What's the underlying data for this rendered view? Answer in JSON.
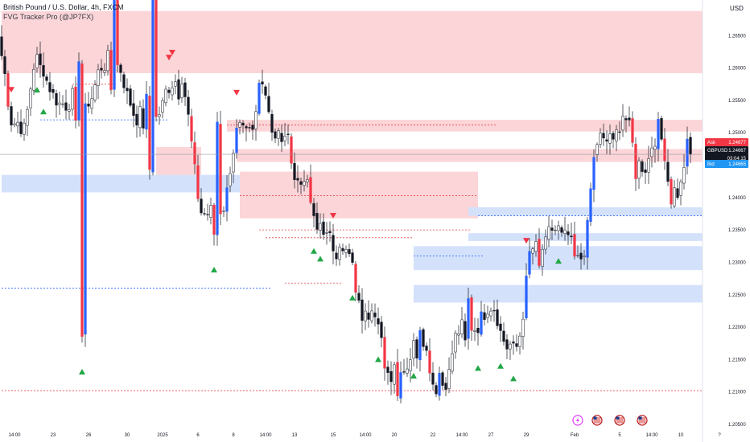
{
  "header": {
    "title": "British Pound / U.S. Dollar, 4h, FXCM",
    "indicator": "FVG Tracker Pro (@JP7FX)"
  },
  "currency": "USD",
  "colors": {
    "bull": "#2962ff",
    "bear": "#f23645",
    "candle_up": "#ffffff",
    "candle_down": "#131722",
    "zone_bear": "#fbd5d8",
    "zone_bull": "#d3e1fb",
    "line_bear": "#e8474c",
    "line_bull": "#2962ff",
    "ask": "#f23645",
    "bid": "#2196f3",
    "symbol": "#131722"
  },
  "price_tags": {
    "ask": {
      "label": "Ask",
      "value": "1.24677"
    },
    "last": {
      "label": "GBPUSD",
      "value": "1.24667",
      "countdown": "03:04:15"
    },
    "bid": {
      "label": "Bid",
      "value": "1.24665"
    }
  },
  "chart_data": {
    "type": "candlestick",
    "title": "British Pound / U.S. Dollar, 4h, FXCM",
    "ylim": [
      1.2045,
      1.2705
    ],
    "y_ticks": [
      {
        "v": 1.265,
        "label": "1.26500"
      },
      {
        "v": 1.26,
        "label": "1.26000"
      },
      {
        "v": 1.255,
        "label": "1.25500"
      },
      {
        "v": 1.25,
        "label": "1.25000"
      },
      {
        "v": 1.245,
        "label": "1.24500"
      },
      {
        "v": 1.24,
        "label": "1.24000"
      },
      {
        "v": 1.235,
        "label": "1.23500"
      },
      {
        "v": 1.23,
        "label": "1.23000"
      },
      {
        "v": 1.225,
        "label": "1.22500"
      },
      {
        "v": 1.22,
        "label": "1.22000"
      },
      {
        "v": 1.215,
        "label": "1.21500"
      },
      {
        "v": 1.21,
        "label": "1.21000"
      },
      {
        "v": 1.205,
        "label": "1.20500"
      }
    ],
    "x_ticks": [
      {
        "i": 4,
        "label": "14:00"
      },
      {
        "i": 16,
        "label": "23"
      },
      {
        "i": 27,
        "label": "26"
      },
      {
        "i": 39,
        "label": "30"
      },
      {
        "i": 50,
        "label": "2025"
      },
      {
        "i": 61,
        "label": "6"
      },
      {
        "i": 72,
        "label": "8"
      },
      {
        "i": 82,
        "label": "14:00"
      },
      {
        "i": 91,
        "label": "13"
      },
      {
        "i": 103,
        "label": "15"
      },
      {
        "i": 113,
        "label": "14:00"
      },
      {
        "i": 122,
        "label": "20"
      },
      {
        "i": 134,
        "label": "22"
      },
      {
        "i": 143,
        "label": "14:00"
      },
      {
        "i": 152,
        "label": "27"
      },
      {
        "i": 163,
        "label": "29"
      },
      {
        "i": 178,
        "label": "Feb"
      },
      {
        "i": 192,
        "label": "5"
      },
      {
        "i": 202,
        "label": "14:00"
      },
      {
        "i": 211,
        "label": "10"
      },
      {
        "i": 223,
        "label": "?"
      }
    ],
    "bars_visible": 172,
    "current_price": 1.24667,
    "first_close": 1.2634,
    "legs": [
      [
        8,
        1.2515
      ],
      [
        5,
        1.2605
      ],
      [
        14,
        1.2545
      ],
      [
        10,
        1.2605
      ],
      [
        12,
        1.2525
      ],
      [
        8,
        1.2575
      ],
      [
        12,
        1.2375
      ],
      [
        10,
        1.2505
      ],
      [
        3,
        1.2575
      ],
      [
        7,
        1.2495
      ],
      [
        6,
        1.2425
      ],
      [
        5,
        1.236
      ],
      [
        8,
        1.232
      ],
      [
        8,
        1.2225
      ],
      [
        9,
        1.213
      ],
      [
        7,
        1.217
      ],
      [
        6,
        1.211
      ],
      [
        9,
        1.2195
      ],
      [
        7,
        1.2225
      ],
      [
        7,
        1.217
      ],
      [
        8,
        1.232
      ],
      [
        7,
        1.235
      ],
      [
        5,
        1.2305
      ],
      [
        10,
        1.249
      ],
      [
        4,
        1.252
      ],
      [
        5,
        1.244
      ],
      [
        6,
        1.249
      ],
      [
        5,
        1.24
      ],
      [
        4,
        1.2467
      ]
    ],
    "zones": [
      {
        "from": 0,
        "to": 224,
        "top": 1.2688,
        "bottom": 1.2592,
        "kind": "bear"
      },
      {
        "from": 70,
        "to": 224,
        "top": 1.252,
        "bottom": 1.2502,
        "kind": "bear"
      },
      {
        "from": 73,
        "to": 224,
        "top": 1.2475,
        "bottom": 1.2455,
        "kind": "bear"
      },
      {
        "from": 74,
        "to": 148,
        "top": 1.244,
        "bottom": 1.2368,
        "kind": "bear"
      },
      {
        "from": 48,
        "to": 62,
        "top": 1.2478,
        "bottom": 1.2412,
        "kind": "bear"
      },
      {
        "from": 0,
        "to": 74,
        "top": 1.2435,
        "bottom": 1.2408,
        "kind": "bull"
      },
      {
        "from": 145,
        "to": 224,
        "top": 1.2385,
        "bottom": 1.2372,
        "kind": "bull"
      },
      {
        "from": 145,
        "to": 224,
        "top": 1.2345,
        "bottom": 1.2333,
        "kind": "bull"
      },
      {
        "from": 128,
        "to": 224,
        "top": 1.2325,
        "bottom": 1.2288,
        "kind": "bull"
      },
      {
        "from": 128,
        "to": 224,
        "top": 1.2265,
        "bottom": 1.2238,
        "kind": "bull"
      }
    ],
    "levels": [
      {
        "from": 0,
        "to": 224,
        "y": 1.2102,
        "kind": "bear"
      },
      {
        "from": 0,
        "to": 84,
        "y": 1.226,
        "kind": "bull"
      },
      {
        "from": 70,
        "to": 154,
        "y": 1.2512,
        "kind": "bear"
      },
      {
        "from": 74,
        "to": 148,
        "y": 1.2403,
        "kind": "bear"
      },
      {
        "from": 80,
        "to": 146,
        "y": 1.235,
        "kind": "bear"
      },
      {
        "from": 82,
        "to": 128,
        "y": 1.2338,
        "kind": "bear"
      },
      {
        "from": 88,
        "to": 106,
        "y": 1.2268,
        "kind": "bear"
      },
      {
        "from": 12,
        "to": 52,
        "y": 1.252,
        "kind": "bull"
      },
      {
        "from": 22,
        "to": 36,
        "y": 1.2575,
        "kind": "bear"
      },
      {
        "from": 128,
        "to": 150,
        "y": 1.231,
        "kind": "bull"
      },
      {
        "from": 148,
        "to": 224,
        "y": 1.2372,
        "kind": "bull"
      }
    ],
    "markers": [
      {
        "i": 3,
        "kind": "bear"
      },
      {
        "i": 11,
        "kind": "bull"
      },
      {
        "i": 13,
        "kind": "bull"
      },
      {
        "i": 25,
        "kind": "bull"
      },
      {
        "i": 52,
        "kind": "bear"
      },
      {
        "i": 53,
        "kind": "bear"
      },
      {
        "i": 66,
        "kind": "bull"
      },
      {
        "i": 73,
        "kind": "bear"
      },
      {
        "i": 97,
        "kind": "bull"
      },
      {
        "i": 99,
        "kind": "bull"
      },
      {
        "i": 103,
        "kind": "bear"
      },
      {
        "i": 109,
        "kind": "bull"
      },
      {
        "i": 117,
        "kind": "bull"
      },
      {
        "i": 128,
        "kind": "bull"
      },
      {
        "i": 148,
        "kind": "bull"
      },
      {
        "i": 155,
        "kind": "bull"
      },
      {
        "i": 159,
        "kind": "bull"
      },
      {
        "i": 163,
        "kind": "bear"
      },
      {
        "i": 173,
        "kind": "bull"
      }
    ],
    "events": [
      {
        "i": 179,
        "icon": "lightning-icon"
      },
      {
        "i": 185,
        "icon": "us-flag-icon"
      },
      {
        "i": 192,
        "icon": "us-flag-icon"
      },
      {
        "i": 199,
        "icon": "us-flag-icon"
      }
    ]
  }
}
